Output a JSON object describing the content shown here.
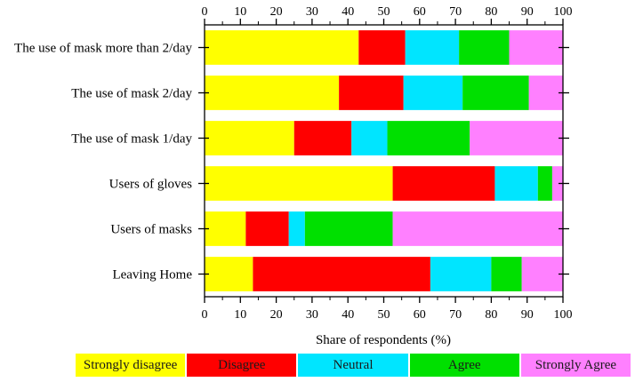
{
  "chart_data": {
    "type": "bar",
    "orientation": "horizontal",
    "stacked": true,
    "xlabel": "Share of respondents (%)",
    "ylabel": "",
    "xlim": [
      0,
      100
    ],
    "x_ticks": [
      "0",
      "10",
      "20",
      "30",
      "40",
      "50",
      "60",
      "70",
      "80",
      "90",
      "100"
    ],
    "grid": false,
    "legend_position": "bottom",
    "categories": [
      "The use of mask more than 2/day",
      "The use of mask 2/day",
      "The use of mask 1/day",
      "Users of gloves",
      "Users of masks",
      "Leaving Home"
    ],
    "series": [
      {
        "name": "Strongly disagree",
        "color": "#ffff00",
        "values": [
          43,
          37.5,
          25,
          52.5,
          11.5,
          13.5
        ]
      },
      {
        "name": "Disagree",
        "color": "#ff0000",
        "values": [
          13,
          18,
          16,
          28.5,
          12,
          49.5
        ]
      },
      {
        "name": "Neutral",
        "color": "#00e5ff",
        "values": [
          15,
          16.5,
          10,
          12,
          4.5,
          17
        ]
      },
      {
        "name": "Agree",
        "color": "#00e000",
        "values": [
          14,
          18.5,
          23,
          4,
          24.5,
          8.5
        ]
      },
      {
        "name": "Strongly Agree",
        "color": "#ff80ff",
        "values": [
          15,
          9.5,
          26,
          3,
          47.5,
          11.5
        ]
      }
    ]
  }
}
